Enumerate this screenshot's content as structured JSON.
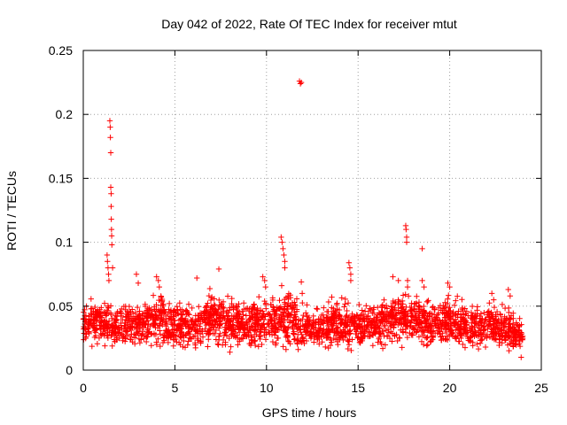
{
  "chart_data": {
    "type": "scatter",
    "title": "Day 042 of 2022, Rate Of TEC Index for receiver mtut",
    "xlabel": "GPS time / hours",
    "ylabel": "ROTI / TECUs",
    "xlim": [
      0,
      25
    ],
    "ylim": [
      0,
      0.25
    ],
    "xticks": [
      0,
      5,
      10,
      15,
      20,
      25
    ],
    "yticks": [
      0,
      0.05,
      0.1,
      0.15,
      0.2,
      0.25
    ],
    "xtick_labels": [
      "0",
      "5",
      "10",
      "15",
      "20",
      "25"
    ],
    "ytick_labels": [
      "0",
      "0.05",
      "0.1",
      "0.15",
      "0.2",
      "0.25"
    ],
    "grid": true,
    "marker": "+",
    "series": [
      {
        "name": "ROTI",
        "color": "#ff0000",
        "x_range": [
          0,
          24
        ],
        "points": [
          [
            1.3,
            0.09
          ],
          [
            1.32,
            0.085
          ],
          [
            1.35,
            0.08
          ],
          [
            1.38,
            0.075
          ],
          [
            1.4,
            0.07
          ],
          [
            1.45,
            0.195
          ],
          [
            1.47,
            0.19
          ],
          [
            1.48,
            0.182
          ],
          [
            1.5,
            0.17
          ],
          [
            1.5,
            0.143
          ],
          [
            1.52,
            0.138
          ],
          [
            1.52,
            0.128
          ],
          [
            1.53,
            0.118
          ],
          [
            1.54,
            0.11
          ],
          [
            1.55,
            0.105
          ],
          [
            1.56,
            0.098
          ],
          [
            1.6,
            0.08
          ],
          [
            2.9,
            0.075
          ],
          [
            3.0,
            0.068
          ],
          [
            4.0,
            0.073
          ],
          [
            4.1,
            0.07
          ],
          [
            4.15,
            0.065
          ],
          [
            6.2,
            0.072
          ],
          [
            7.4,
            0.079
          ],
          [
            9.8,
            0.073
          ],
          [
            9.9,
            0.07
          ],
          [
            9.95,
            0.065
          ],
          [
            10.8,
            0.104
          ],
          [
            10.85,
            0.1
          ],
          [
            10.9,
            0.095
          ],
          [
            10.95,
            0.09
          ],
          [
            11.0,
            0.085
          ],
          [
            11.0,
            0.08
          ],
          [
            11.8,
            0.226
          ],
          [
            11.85,
            0.224
          ],
          [
            11.9,
            0.225
          ],
          [
            11.9,
            0.069
          ],
          [
            11.95,
            0.06
          ],
          [
            14.5,
            0.084
          ],
          [
            14.55,
            0.08
          ],
          [
            14.6,
            0.075
          ],
          [
            14.6,
            0.07
          ],
          [
            16.9,
            0.073
          ],
          [
            17.2,
            0.07
          ],
          [
            17.6,
            0.113
          ],
          [
            17.62,
            0.11
          ],
          [
            17.65,
            0.104
          ],
          [
            17.65,
            0.1
          ],
          [
            17.7,
            0.07
          ],
          [
            17.7,
            0.065
          ],
          [
            18.5,
            0.095
          ],
          [
            18.5,
            0.07
          ],
          [
            18.6,
            0.065
          ],
          [
            19.9,
            0.068
          ],
          [
            20.0,
            0.065
          ],
          [
            22.3,
            0.06
          ],
          [
            22.4,
            0.055
          ],
          [
            23.2,
            0.063
          ],
          [
            23.3,
            0.058
          ],
          [
            23.9,
            0.01
          ]
        ],
        "background_band": {
          "description": "dense scatter of ROTI samples across the day",
          "typical_low": 0.01,
          "typical_high": 0.05,
          "envelope": [
            [
              0,
              0.018,
              0.05
            ],
            [
              1,
              0.015,
              0.055
            ],
            [
              2,
              0.015,
              0.05
            ],
            [
              3,
              0.015,
              0.05
            ],
            [
              4,
              0.008,
              0.06
            ],
            [
              5,
              0.012,
              0.055
            ],
            [
              6,
              0.012,
              0.05
            ],
            [
              7,
              0.015,
              0.06
            ],
            [
              8,
              0.012,
              0.055
            ],
            [
              9,
              0.012,
              0.055
            ],
            [
              10,
              0.012,
              0.06
            ],
            [
              11,
              0.012,
              0.065
            ],
            [
              12,
              0.012,
              0.05
            ],
            [
              13,
              0.012,
              0.05
            ],
            [
              14,
              0.012,
              0.055
            ],
            [
              15,
              0.012,
              0.05
            ],
            [
              16,
              0.015,
              0.05
            ],
            [
              17,
              0.015,
              0.06
            ],
            [
              18,
              0.015,
              0.06
            ],
            [
              19,
              0.012,
              0.055
            ],
            [
              20,
              0.012,
              0.055
            ],
            [
              21,
              0.012,
              0.05
            ],
            [
              22,
              0.01,
              0.05
            ],
            [
              23,
              0.01,
              0.05
            ],
            [
              24,
              0.01,
              0.04
            ]
          ],
          "sample_count": 2600
        }
      }
    ]
  }
}
